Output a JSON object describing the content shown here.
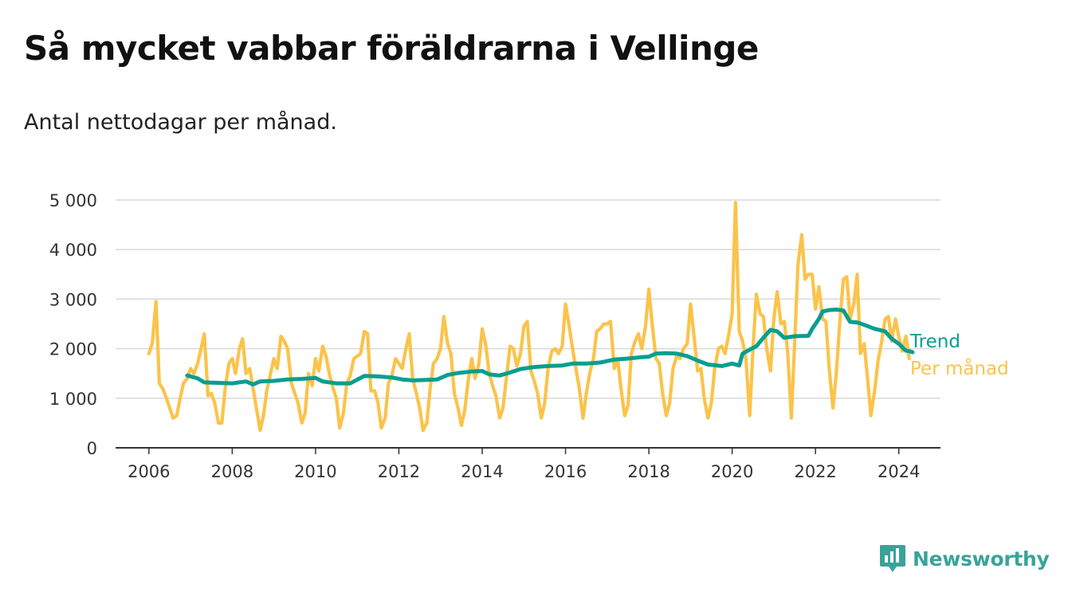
{
  "title": "Så mycket vabbar föräldrarna i Vellinge",
  "subtitle": "Antal nettodagar per månad.",
  "brand": {
    "name": "Newsworthy",
    "icon": "bar-chart-icon"
  },
  "colors": {
    "monthly": "#fbc34a",
    "trend": "#0a9e8f",
    "grid": "#d9d9d9",
    "axis": "#333333",
    "brand": "#3aa39a"
  },
  "chart_data": {
    "type": "line",
    "title": "Så mycket vabbar föräldrarna i Vellinge",
    "subtitle": "Antal nettodagar per månad.",
    "xlim": [
      2005.2,
      2025.0
    ],
    "ylim": [
      0,
      5000
    ],
    "x_ticks": [
      2006,
      2008,
      2010,
      2012,
      2014,
      2016,
      2018,
      2020,
      2022,
      2024
    ],
    "x_tick_labels": [
      "2006",
      "2008",
      "2010",
      "2012",
      "2014",
      "2016",
      "2018",
      "2020",
      "2022",
      "2024"
    ],
    "y_ticks": [
      0,
      1000,
      2000,
      3000,
      4000,
      5000
    ],
    "y_tick_labels": [
      "0",
      "1 000",
      "2 000",
      "3 000",
      "4 000",
      "5 000"
    ],
    "grid": true,
    "legend_placement": "inline-right",
    "series": [
      {
        "name": "Per månad",
        "color": "#fbc34a",
        "points": [
          [
            2006.0,
            1900
          ],
          [
            2006.08,
            2100
          ],
          [
            2006.17,
            2950
          ],
          [
            2006.25,
            1300
          ],
          [
            2006.33,
            1200
          ],
          [
            2006.42,
            1000
          ],
          [
            2006.5,
            800
          ],
          [
            2006.58,
            600
          ],
          [
            2006.67,
            650
          ],
          [
            2006.75,
            1000
          ],
          [
            2006.83,
            1300
          ],
          [
            2006.92,
            1400
          ],
          [
            2007.0,
            1600
          ],
          [
            2007.08,
            1500
          ],
          [
            2007.17,
            1700
          ],
          [
            2007.25,
            2000
          ],
          [
            2007.33,
            2300
          ],
          [
            2007.42,
            1050
          ],
          [
            2007.5,
            1100
          ],
          [
            2007.58,
            900
          ],
          [
            2007.67,
            500
          ],
          [
            2007.75,
            500
          ],
          [
            2007.83,
            1200
          ],
          [
            2007.92,
            1700
          ],
          [
            2008.0,
            1800
          ],
          [
            2008.08,
            1500
          ],
          [
            2008.17,
            2000
          ],
          [
            2008.25,
            2200
          ],
          [
            2008.33,
            1500
          ],
          [
            2008.42,
            1600
          ],
          [
            2008.5,
            1200
          ],
          [
            2008.58,
            800
          ],
          [
            2008.67,
            350
          ],
          [
            2008.75,
            650
          ],
          [
            2008.83,
            1150
          ],
          [
            2008.92,
            1500
          ],
          [
            2009.0,
            1800
          ],
          [
            2009.08,
            1600
          ],
          [
            2009.17,
            2250
          ],
          [
            2009.25,
            2150
          ],
          [
            2009.33,
            2000
          ],
          [
            2009.42,
            1300
          ],
          [
            2009.5,
            1100
          ],
          [
            2009.58,
            900
          ],
          [
            2009.67,
            500
          ],
          [
            2009.75,
            700
          ],
          [
            2009.83,
            1500
          ],
          [
            2009.92,
            1250
          ],
          [
            2010.0,
            1800
          ],
          [
            2010.08,
            1550
          ],
          [
            2010.17,
            2050
          ],
          [
            2010.25,
            1850
          ],
          [
            2010.33,
            1500
          ],
          [
            2010.42,
            1200
          ],
          [
            2010.5,
            1000
          ],
          [
            2010.58,
            400
          ],
          [
            2010.67,
            700
          ],
          [
            2010.75,
            1300
          ],
          [
            2010.83,
            1450
          ],
          [
            2010.92,
            1800
          ],
          [
            2011.0,
            1850
          ],
          [
            2011.08,
            1900
          ],
          [
            2011.17,
            2350
          ],
          [
            2011.25,
            2300
          ],
          [
            2011.33,
            1150
          ],
          [
            2011.42,
            1150
          ],
          [
            2011.5,
            900
          ],
          [
            2011.58,
            400
          ],
          [
            2011.67,
            600
          ],
          [
            2011.75,
            1300
          ],
          [
            2011.83,
            1450
          ],
          [
            2011.92,
            1800
          ],
          [
            2012.0,
            1700
          ],
          [
            2012.08,
            1600
          ],
          [
            2012.17,
            2000
          ],
          [
            2012.25,
            2300
          ],
          [
            2012.33,
            1400
          ],
          [
            2012.42,
            1100
          ],
          [
            2012.5,
            800
          ],
          [
            2012.58,
            350
          ],
          [
            2012.67,
            500
          ],
          [
            2012.75,
            1200
          ],
          [
            2012.83,
            1700
          ],
          [
            2012.92,
            1800
          ],
          [
            2013.0,
            2000
          ],
          [
            2013.08,
            2650
          ],
          [
            2013.17,
            2100
          ],
          [
            2013.25,
            1900
          ],
          [
            2013.33,
            1100
          ],
          [
            2013.42,
            800
          ],
          [
            2013.5,
            450
          ],
          [
            2013.58,
            750
          ],
          [
            2013.67,
            1400
          ],
          [
            2013.75,
            1800
          ],
          [
            2013.83,
            1400
          ],
          [
            2013.92,
            1700
          ],
          [
            2014.0,
            2400
          ],
          [
            2014.08,
            2100
          ],
          [
            2014.17,
            1500
          ],
          [
            2014.25,
            1250
          ],
          [
            2014.33,
            1050
          ],
          [
            2014.42,
            600
          ],
          [
            2014.5,
            800
          ],
          [
            2014.58,
            1400
          ],
          [
            2014.67,
            2050
          ],
          [
            2014.75,
            2000
          ],
          [
            2014.83,
            1650
          ],
          [
            2014.92,
            1900
          ],
          [
            2015.0,
            2450
          ],
          [
            2015.08,
            2550
          ],
          [
            2015.17,
            1550
          ],
          [
            2015.25,
            1350
          ],
          [
            2015.33,
            1100
          ],
          [
            2015.42,
            600
          ],
          [
            2015.5,
            900
          ],
          [
            2015.58,
            1600
          ],
          [
            2015.67,
            1950
          ],
          [
            2015.75,
            2000
          ],
          [
            2015.83,
            1900
          ],
          [
            2015.92,
            2050
          ],
          [
            2016.0,
            2900
          ],
          [
            2016.08,
            2500
          ],
          [
            2016.17,
            2000
          ],
          [
            2016.25,
            1600
          ],
          [
            2016.33,
            1200
          ],
          [
            2016.42,
            600
          ],
          [
            2016.5,
            1100
          ],
          [
            2016.58,
            1500
          ],
          [
            2016.67,
            1800
          ],
          [
            2016.75,
            2350
          ],
          [
            2016.83,
            2400
          ],
          [
            2016.92,
            2500
          ],
          [
            2017.0,
            2500
          ],
          [
            2017.08,
            2550
          ],
          [
            2017.17,
            1600
          ],
          [
            2017.25,
            1800
          ],
          [
            2017.33,
            1200
          ],
          [
            2017.42,
            650
          ],
          [
            2017.5,
            850
          ],
          [
            2017.58,
            1900
          ],
          [
            2017.67,
            2150
          ],
          [
            2017.75,
            2300
          ],
          [
            2017.83,
            2000
          ],
          [
            2017.92,
            2450
          ],
          [
            2018.0,
            3200
          ],
          [
            2018.08,
            2500
          ],
          [
            2018.17,
            1800
          ],
          [
            2018.25,
            1700
          ],
          [
            2018.33,
            1100
          ],
          [
            2018.42,
            650
          ],
          [
            2018.5,
            900
          ],
          [
            2018.58,
            1600
          ],
          [
            2018.67,
            1850
          ],
          [
            2018.75,
            1800
          ],
          [
            2018.83,
            2000
          ],
          [
            2018.92,
            2100
          ],
          [
            2019.0,
            2900
          ],
          [
            2019.08,
            2300
          ],
          [
            2019.17,
            1550
          ],
          [
            2019.25,
            1600
          ],
          [
            2019.33,
            1000
          ],
          [
            2019.42,
            600
          ],
          [
            2019.5,
            900
          ],
          [
            2019.58,
            1600
          ],
          [
            2019.67,
            2000
          ],
          [
            2019.75,
            2050
          ],
          [
            2019.83,
            1900
          ],
          [
            2019.92,
            2300
          ],
          [
            2020.0,
            2700
          ],
          [
            2020.08,
            4950
          ],
          [
            2020.17,
            2350
          ],
          [
            2020.25,
            2150
          ],
          [
            2020.33,
            1800
          ],
          [
            2020.42,
            650
          ],
          [
            2020.5,
            2000
          ],
          [
            2020.58,
            3100
          ],
          [
            2020.67,
            2700
          ],
          [
            2020.75,
            2650
          ],
          [
            2020.83,
            2000
          ],
          [
            2020.92,
            1550
          ],
          [
            2021.0,
            2600
          ],
          [
            2021.08,
            3150
          ],
          [
            2021.17,
            2500
          ],
          [
            2021.25,
            2550
          ],
          [
            2021.33,
            1950
          ],
          [
            2021.42,
            600
          ],
          [
            2021.5,
            2100
          ],
          [
            2021.58,
            3700
          ],
          [
            2021.67,
            4300
          ],
          [
            2021.75,
            3400
          ],
          [
            2021.83,
            3500
          ],
          [
            2021.92,
            3500
          ],
          [
            2022.0,
            2800
          ],
          [
            2022.08,
            3250
          ],
          [
            2022.17,
            2600
          ],
          [
            2022.25,
            2550
          ],
          [
            2022.33,
            1600
          ],
          [
            2022.42,
            800
          ],
          [
            2022.5,
            1500
          ],
          [
            2022.58,
            2500
          ],
          [
            2022.67,
            3400
          ],
          [
            2022.75,
            3450
          ],
          [
            2022.83,
            2600
          ],
          [
            2022.92,
            2900
          ],
          [
            2023.0,
            3500
          ],
          [
            2023.08,
            1900
          ],
          [
            2023.17,
            2100
          ],
          [
            2023.25,
            1400
          ],
          [
            2023.33,
            650
          ],
          [
            2023.42,
            1150
          ],
          [
            2023.5,
            1750
          ],
          [
            2023.58,
            2100
          ],
          [
            2023.67,
            2600
          ],
          [
            2023.75,
            2650
          ],
          [
            2023.83,
            2150
          ],
          [
            2023.92,
            2600
          ],
          [
            2024.0,
            2250
          ],
          [
            2024.08,
            1950
          ],
          [
            2024.17,
            2250
          ],
          [
            2024.25,
            1800
          ]
        ]
      },
      {
        "name": "Trend",
        "color": "#0a9e8f",
        "points": [
          [
            2006.92,
            1460
          ],
          [
            2007.17,
            1400
          ],
          [
            2007.33,
            1320
          ],
          [
            2007.67,
            1310
          ],
          [
            2008.0,
            1300
          ],
          [
            2008.33,
            1340
          ],
          [
            2008.5,
            1280
          ],
          [
            2008.67,
            1340
          ],
          [
            2009.0,
            1350
          ],
          [
            2009.33,
            1380
          ],
          [
            2009.67,
            1390
          ],
          [
            2010.0,
            1410
          ],
          [
            2010.17,
            1340
          ],
          [
            2010.5,
            1300
          ],
          [
            2010.83,
            1300
          ],
          [
            2011.17,
            1450
          ],
          [
            2011.5,
            1440
          ],
          [
            2011.83,
            1420
          ],
          [
            2012.08,
            1380
          ],
          [
            2012.33,
            1360
          ],
          [
            2012.67,
            1370
          ],
          [
            2012.92,
            1380
          ],
          [
            2013.17,
            1470
          ],
          [
            2013.42,
            1510
          ],
          [
            2013.75,
            1540
          ],
          [
            2014.0,
            1550
          ],
          [
            2014.17,
            1480
          ],
          [
            2014.42,
            1460
          ],
          [
            2014.67,
            1520
          ],
          [
            2014.92,
            1590
          ],
          [
            2015.25,
            1630
          ],
          [
            2015.58,
            1650
          ],
          [
            2015.92,
            1660
          ],
          [
            2016.17,
            1700
          ],
          [
            2016.5,
            1700
          ],
          [
            2016.83,
            1720
          ],
          [
            2017.17,
            1780
          ],
          [
            2017.5,
            1800
          ],
          [
            2017.83,
            1830
          ],
          [
            2018.0,
            1840
          ],
          [
            2018.17,
            1900
          ],
          [
            2018.42,
            1910
          ],
          [
            2018.67,
            1900
          ],
          [
            2018.92,
            1850
          ],
          [
            2019.17,
            1760
          ],
          [
            2019.42,
            1680
          ],
          [
            2019.75,
            1650
          ],
          [
            2020.0,
            1700
          ],
          [
            2020.17,
            1660
          ],
          [
            2020.25,
            1900
          ],
          [
            2020.42,
            1980
          ],
          [
            2020.58,
            2050
          ],
          [
            2020.75,
            2220
          ],
          [
            2020.92,
            2380
          ],
          [
            2021.08,
            2350
          ],
          [
            2021.25,
            2220
          ],
          [
            2021.5,
            2250
          ],
          [
            2021.83,
            2260
          ],
          [
            2021.92,
            2400
          ],
          [
            2022.08,
            2600
          ],
          [
            2022.17,
            2750
          ],
          [
            2022.33,
            2780
          ],
          [
            2022.5,
            2790
          ],
          [
            2022.67,
            2770
          ],
          [
            2022.83,
            2540
          ],
          [
            2023.0,
            2530
          ],
          [
            2023.17,
            2480
          ],
          [
            2023.42,
            2400
          ],
          [
            2023.67,
            2350
          ],
          [
            2023.83,
            2200
          ],
          [
            2024.0,
            2100
          ],
          [
            2024.17,
            1960
          ],
          [
            2024.25,
            1950
          ],
          [
            2024.33,
            1930
          ]
        ]
      }
    ]
  }
}
